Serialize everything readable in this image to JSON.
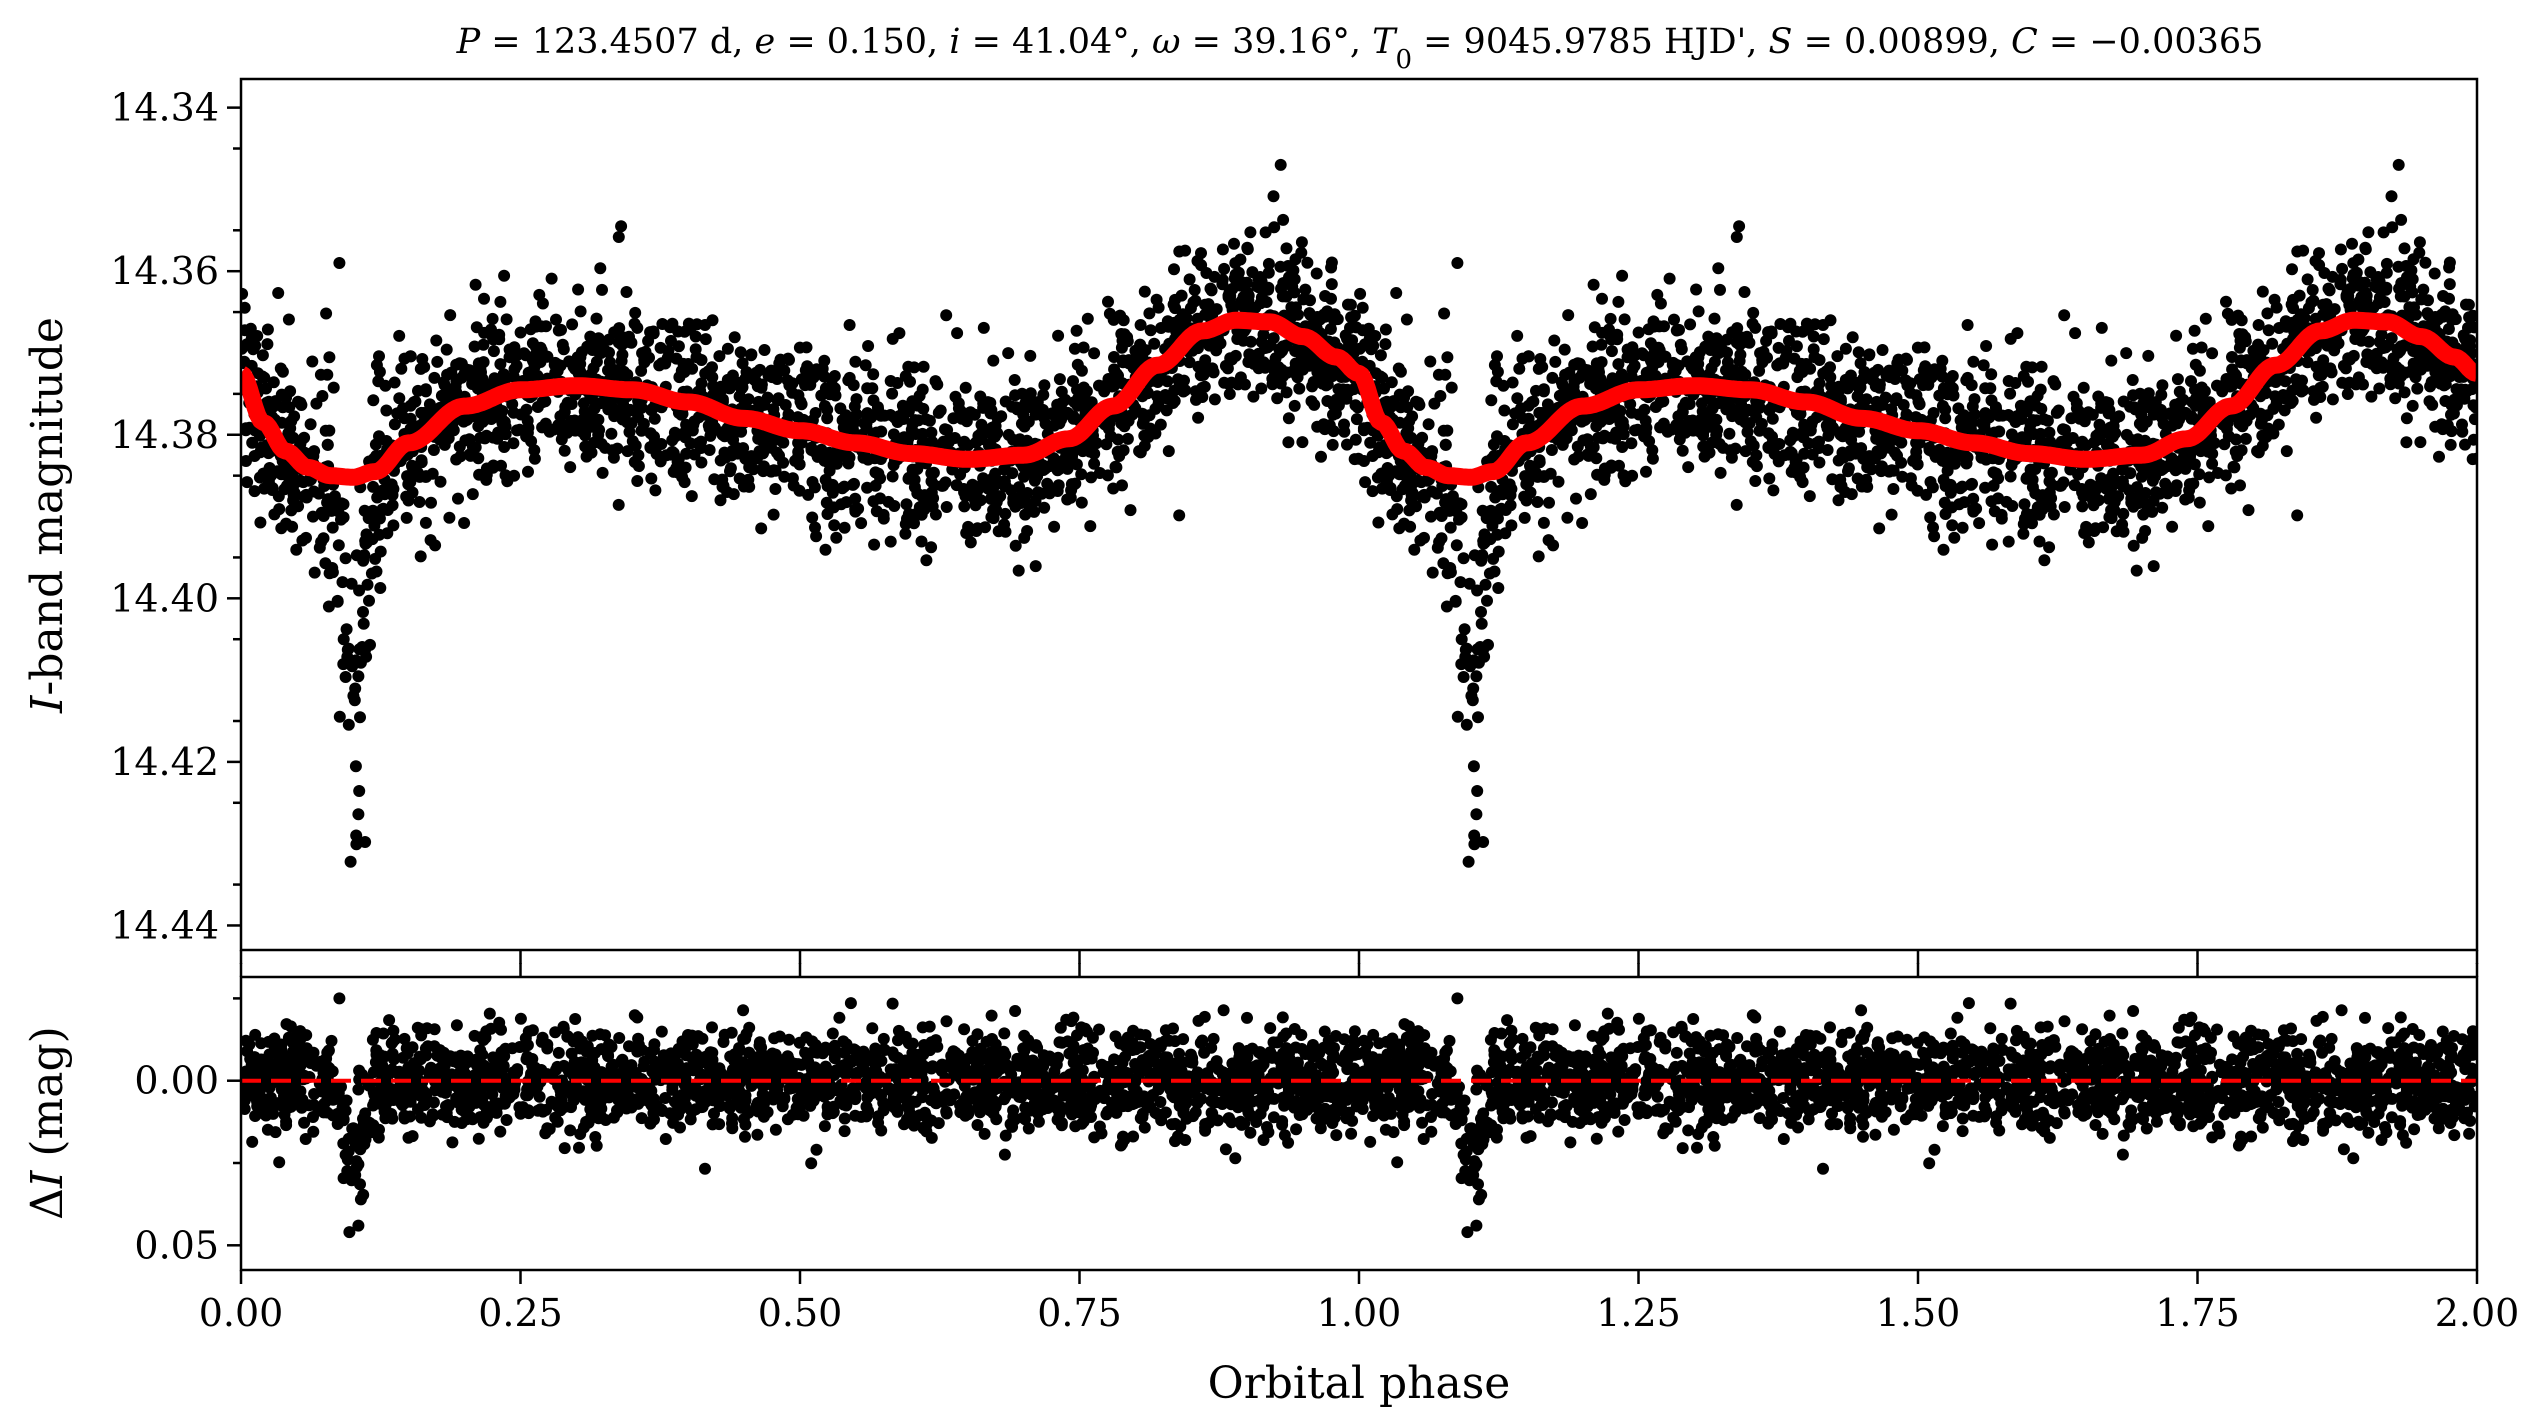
{
  "chart_data": [
    {
      "type": "scatter",
      "panel": "top",
      "title": "P = 123.4507 d, e = 0.150, i = 41.04°, ω = 39.16°, T0 = 9045.9785 HJD', S = 0.00899, C = −0.00365",
      "title_parts": {
        "P": "P",
        "P_val": " = 123.4507 d, ",
        "e": "e",
        "e_val": " = 0.150, ",
        "i": "i",
        "i_val": " = 41.04°, ",
        "w": "ω",
        "w_val": " = 39.16°, ",
        "T": "T",
        "T_sub": "0",
        "T_val": " = 9045.9785 HJD', ",
        "S": "S",
        "S_val": " = 0.00899, ",
        "C": "C",
        "C_val": " = −0.00365"
      },
      "ylabel_italic": "I",
      "ylabel_rest": "-band magnitude",
      "xlim": [
        0,
        2
      ],
      "ylim": [
        14.443,
        14.3365
      ],
      "y_inverted": true,
      "yticks": [
        "14.34",
        "14.36",
        "14.38",
        "14.40",
        "14.42",
        "14.44"
      ],
      "ytick_values": [
        14.34,
        14.36,
        14.38,
        14.4,
        14.42,
        14.44
      ],
      "series": [
        {
          "name": "",
          "kind": "points",
          "color": "#000000",
          "count_per_phase": 2200
        },
        {
          "name": "",
          "kind": "model-curve",
          "color": "#ff0000"
        }
      ],
      "model_curve": {
        "phase": [
          0.0,
          0.02,
          0.04,
          0.06,
          0.08,
          0.1,
          0.12,
          0.15,
          0.2,
          0.25,
          0.3,
          0.35,
          0.4,
          0.45,
          0.5,
          0.55,
          0.6,
          0.65,
          0.7,
          0.74,
          0.78,
          0.82,
          0.86,
          0.89,
          0.92,
          0.95,
          0.98,
          1.0
        ],
        "mag": [
          14.3725,
          14.3785,
          14.382,
          14.384,
          14.385,
          14.3852,
          14.3845,
          14.381,
          14.3765,
          14.3745,
          14.374,
          14.3745,
          14.376,
          14.378,
          14.3795,
          14.381,
          14.3823,
          14.383,
          14.3825,
          14.3805,
          14.3765,
          14.3715,
          14.3673,
          14.366,
          14.3662,
          14.368,
          14.3705,
          14.3725
        ]
      },
      "scatter_envelope": {
        "phase": [
          0.0,
          0.05,
          0.09,
          0.1,
          0.11,
          0.13,
          0.2,
          0.3,
          0.4,
          0.5,
          0.6,
          0.7,
          0.8,
          0.88,
          0.93,
          0.98,
          1.0
        ],
        "sigma_mag": [
          0.0055,
          0.0065,
          0.01,
          0.012,
          0.009,
          0.0065,
          0.0058,
          0.0055,
          0.0055,
          0.0056,
          0.0057,
          0.006,
          0.006,
          0.0058,
          0.0058,
          0.0056,
          0.0055
        ],
        "eclipse_dip": {
          "center_phase": 0.102,
          "depth_mag": 0.032,
          "width_phase": 0.009
        }
      },
      "outlier_points": [
        {
          "x": 0.098,
          "y": 14.4322
        },
        {
          "x": 0.103,
          "y": 14.429
        },
        {
          "x": 0.111,
          "y": 14.4298
        },
        {
          "x": 0.088,
          "y": 14.359
        },
        {
          "x": 0.34,
          "y": 14.3545
        },
        {
          "x": 0.93,
          "y": 14.347
        }
      ]
    },
    {
      "type": "scatter",
      "panel": "bottom",
      "xlabel": "Orbital phase",
      "ylabel_greek": "Δ",
      "ylabel_italic": "I",
      "ylabel_rest": " (mag)",
      "xlim": [
        0,
        2
      ],
      "ylim": [
        0.0575,
        -0.0315
      ],
      "y_inverted": true,
      "yticks": [
        "0.00",
        "0.05"
      ],
      "ytick_values": [
        0.0,
        0.05
      ],
      "xticks": [
        "0.00",
        "0.25",
        "0.50",
        "0.75",
        "1.00",
        "1.25",
        "1.50",
        "1.75",
        "2.00"
      ],
      "xtick_values": [
        0.0,
        0.25,
        0.5,
        0.75,
        1.0,
        1.25,
        1.5,
        1.75,
        2.0
      ],
      "reference_line": {
        "y": 0.0,
        "style": "dashed",
        "color": "#ff0000"
      },
      "residual_sigma": 0.0075,
      "eclipse_residual_dip": {
        "center_phase": 0.102,
        "depth_mag": 0.03,
        "width_phase": 0.008
      },
      "outlier_points": [
        {
          "x": 0.097,
          "y": 0.046
        },
        {
          "x": 0.105,
          "y": 0.044
        },
        {
          "x": 0.088,
          "y": -0.025
        }
      ]
    }
  ]
}
